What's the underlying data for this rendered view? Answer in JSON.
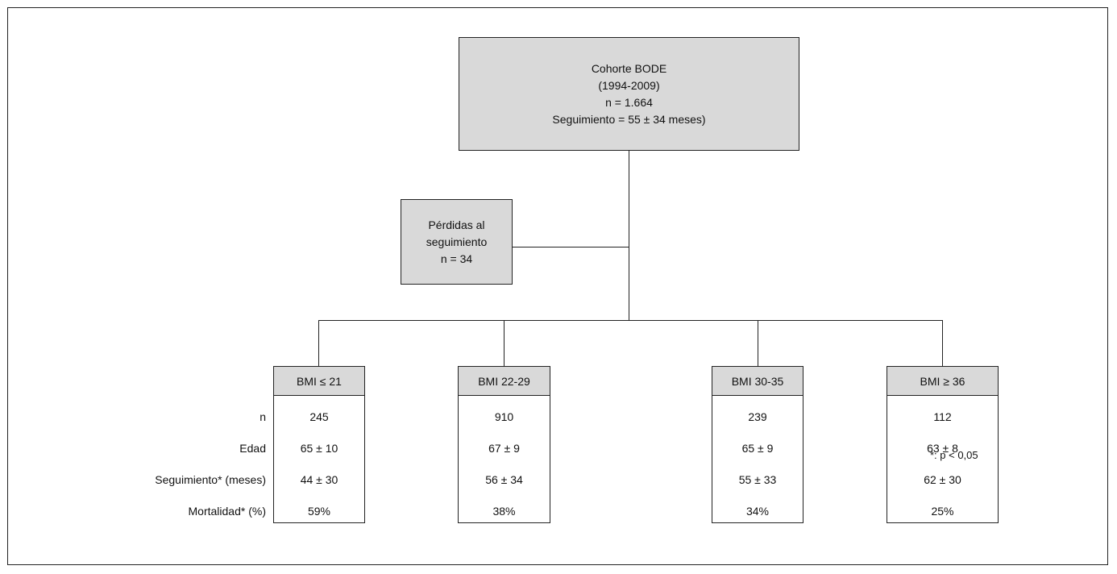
{
  "top_box": {
    "line1": "Cohorte BODE",
    "line2": "(1994-2009)",
    "line3": "n = 1.664",
    "line4": "Seguimiento = 55 ± 34 meses)"
  },
  "loss_box": {
    "line1": "Pérdidas al",
    "line2": "seguimiento",
    "line3": "n = 34"
  },
  "row_labels": [
    "n",
    "Edad",
    "Seguimiento* (meses)",
    "Mortalidad* (%)"
  ],
  "groups": [
    {
      "header": "BMI ≤ 21",
      "n": "245",
      "edad": "65 ± 10",
      "seguimiento": "44 ± 30",
      "mortalidad": "59%"
    },
    {
      "header": "BMI 22-29",
      "n": "910",
      "edad": "67 ± 9",
      "seguimiento": "56 ± 34",
      "mortalidad": "38%"
    },
    {
      "header": "BMI 30-35",
      "n": "239",
      "edad": "65 ± 9",
      "seguimiento": "55 ± 33",
      "mortalidad": "34%"
    },
    {
      "header": "BMI ≥ 36",
      "n": "112",
      "edad": "63 ± 8",
      "seguimiento": "62 ± 30",
      "mortalidad": "25%"
    }
  ],
  "footnote": "*: p < 0,05"
}
